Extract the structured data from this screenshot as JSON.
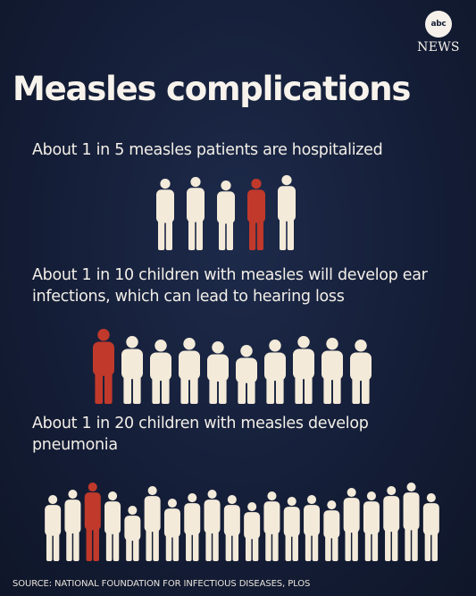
{
  "brand": {
    "logo_text": "abc",
    "news_text": "NEWS"
  },
  "title": "Measles complications",
  "stats": [
    {
      "text": "About 1 in 5 measles patients are hospitalized",
      "total": 5,
      "highlighted": 1
    },
    {
      "text": "About 1 in 10 children with measles will develop ear infections, which can lead to hearing loss",
      "total": 10,
      "highlighted": 1
    },
    {
      "text": "About 1 in 20 children with measles develop pneumonia",
      "total": 20,
      "highlighted": 1
    }
  ],
  "source": "SOURCE: NATIONAL FOUNDATION FOR INFECTIOUS DISEASES, PLOS",
  "colors": {
    "background": "#141d36",
    "figure": "#f3ead9",
    "highlight": "#c0392b",
    "text": "#f3efe8"
  }
}
